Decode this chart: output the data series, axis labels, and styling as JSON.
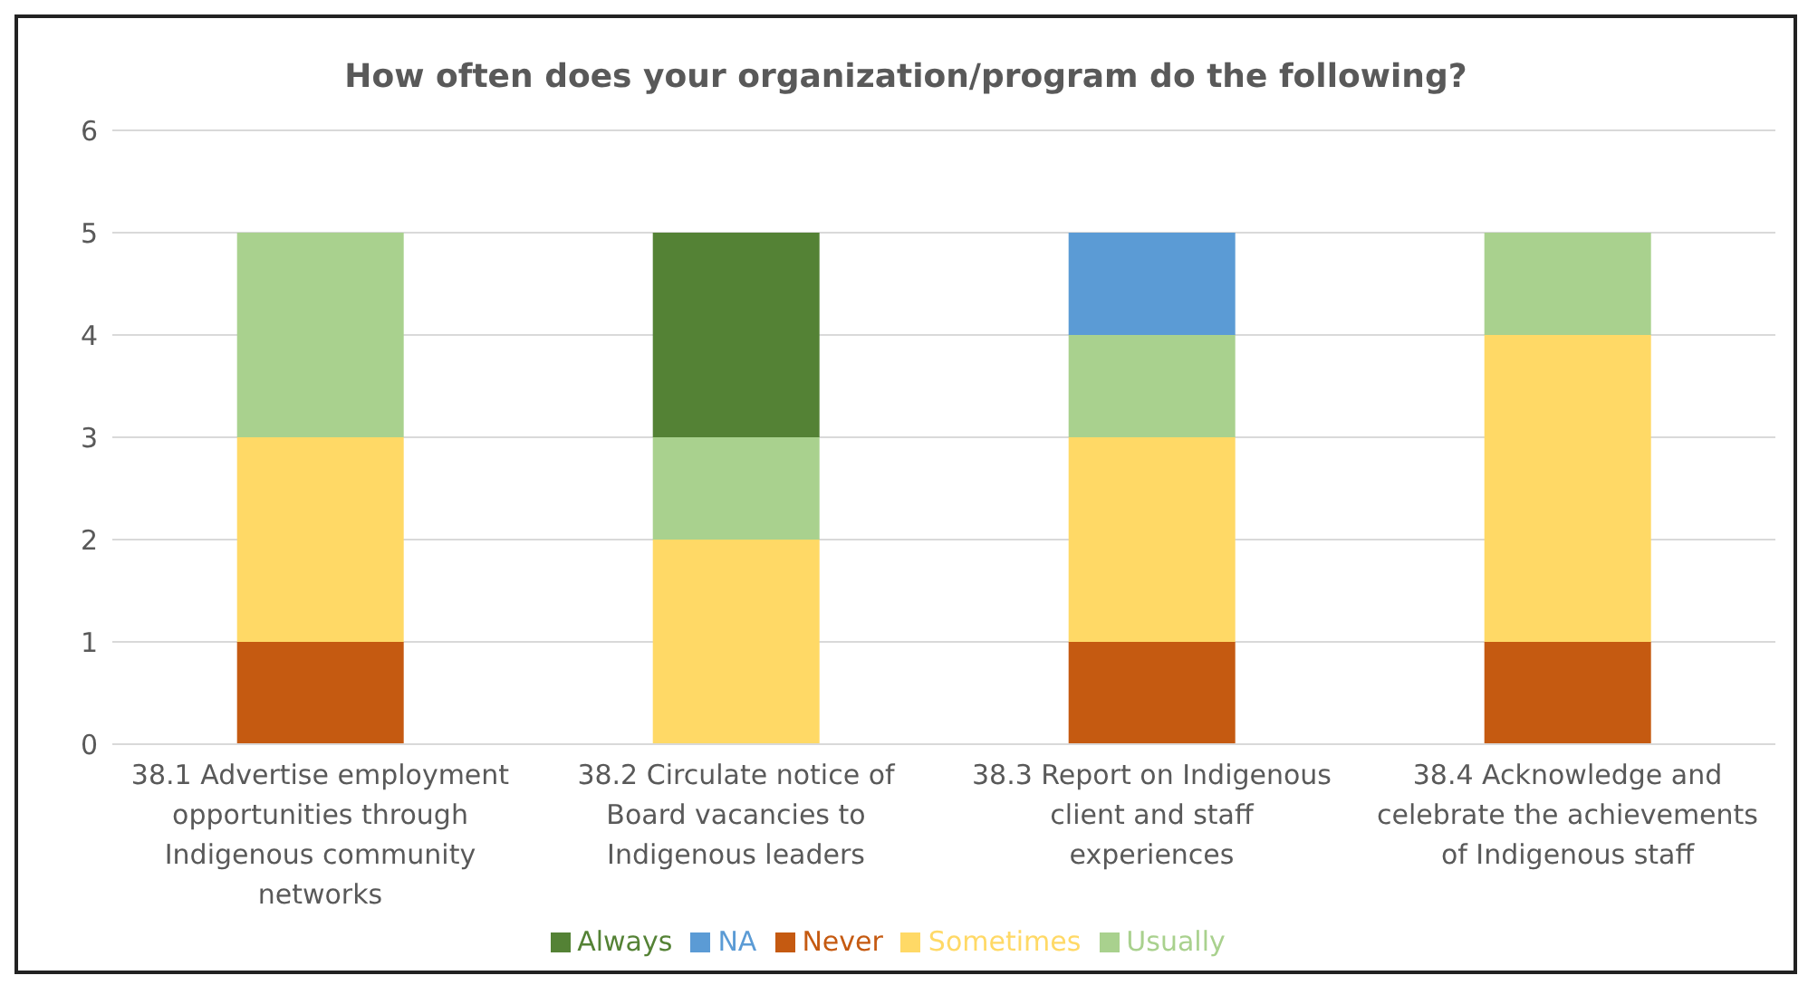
{
  "chart_data": {
    "type": "bar",
    "title": "How often does your organization/program do the following?",
    "categories": [
      "38.1 Advertise employment opportunities through Indigenous community networks",
      "38.2 Circulate notice of Board vacancies to Indigenous leaders",
      "38.3 Report on Indigenous client and staff experiences",
      "38.4 Acknowledge and celebrate the achievements of Indigenous staff"
    ],
    "stacked": true,
    "series": [
      {
        "name": "Never",
        "color": "#c55a11",
        "values": [
          1,
          0,
          1,
          1
        ]
      },
      {
        "name": "Sometimes",
        "color": "#ffd966",
        "values": [
          2,
          2,
          2,
          3
        ]
      },
      {
        "name": "Usually",
        "color": "#a9d18e",
        "values": [
          2,
          1,
          1,
          1
        ]
      },
      {
        "name": "Always",
        "color": "#548235",
        "values": [
          0,
          2,
          0,
          0
        ]
      },
      {
        "name": "NA",
        "color": "#5b9bd5",
        "values": [
          0,
          0,
          1,
          0
        ]
      }
    ],
    "ylim": [
      0,
      6
    ],
    "yticks": [
      0,
      1,
      2,
      3,
      4,
      5,
      6
    ],
    "grid": "y",
    "legend": "bottom"
  }
}
